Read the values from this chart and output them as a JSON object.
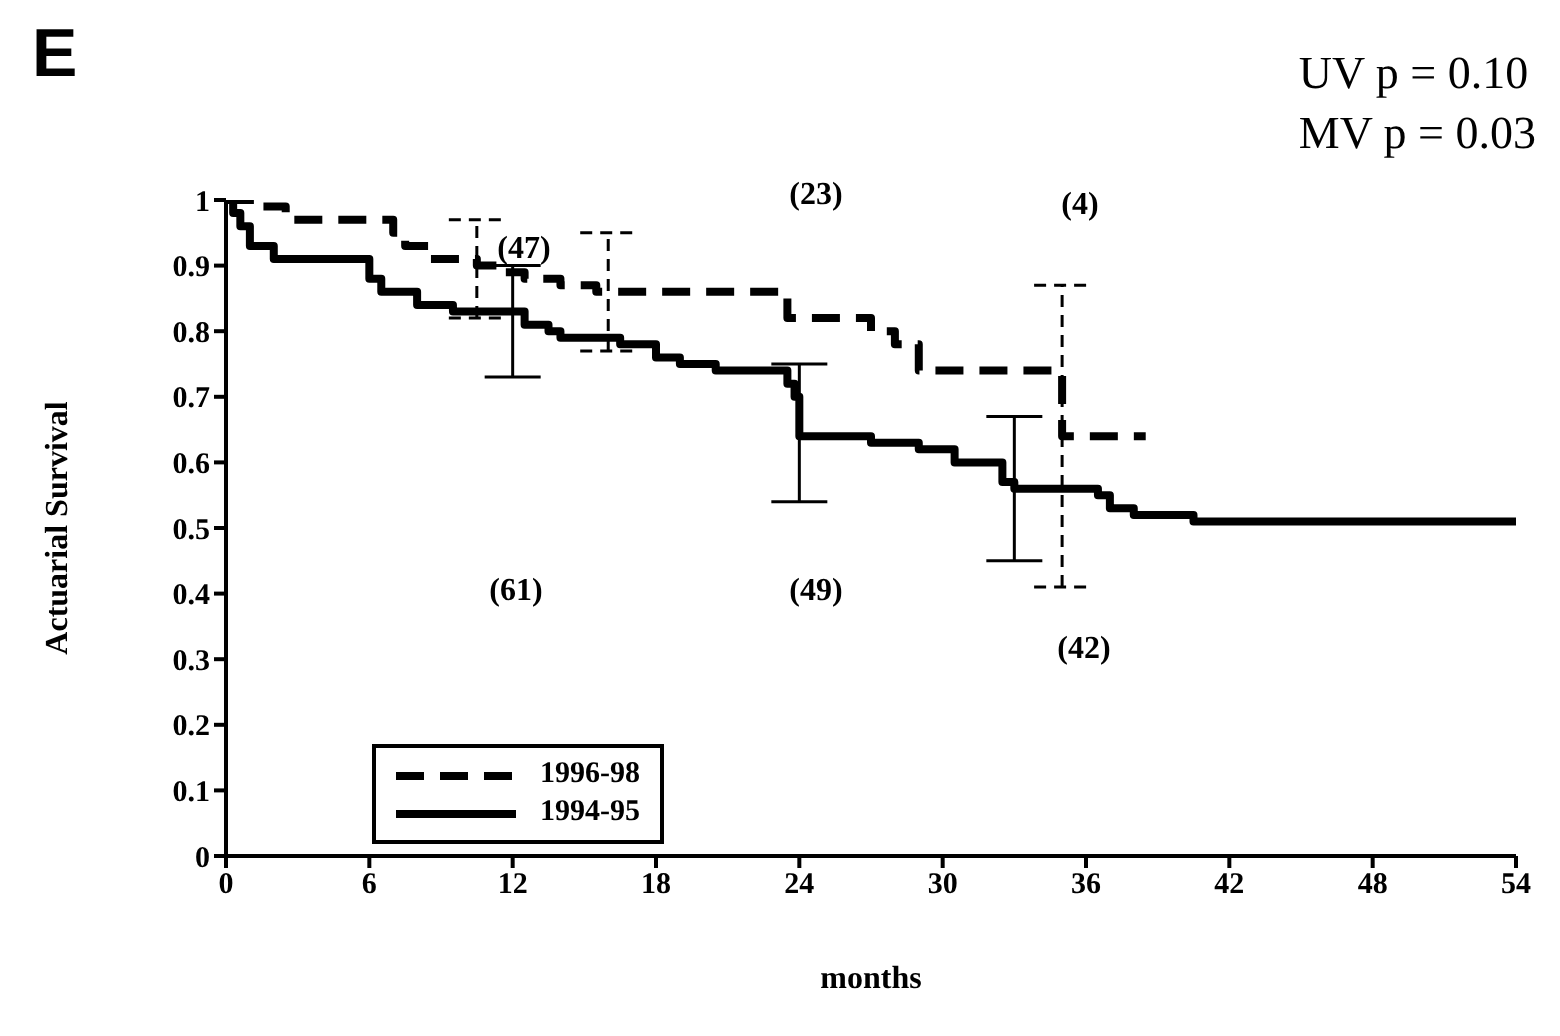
{
  "chart_data": {
    "type": "step",
    "title": "E",
    "xlabel": "months",
    "ylabel": "Actuarial Survival",
    "xlim": [
      0,
      54
    ],
    "xticks": [
      0,
      6,
      12,
      18,
      24,
      30,
      36,
      42,
      48,
      54
    ],
    "ylim": [
      0,
      1
    ],
    "yticks": [
      0,
      0.1,
      0.2,
      0.3,
      0.4,
      0.5,
      0.6,
      0.7,
      0.8,
      0.9,
      1
    ],
    "legend": "bottom left",
    "marker": "none",
    "grid": false,
    "annotations": [
      "UV p = 0.10",
      "MV p = 0.03",
      "(47)",
      "(61)",
      "(23)",
      "(49)",
      "(4)",
      "(42)"
    ],
    "series": [
      {
        "name": "1996-98",
        "color": "#000000",
        "line_style": "dashed",
        "x": [
          0,
          1,
          2.5,
          7,
          7.5,
          8.5,
          10.5,
          11.5,
          12.5,
          14,
          15.5,
          16,
          23.5,
          27,
          28,
          29,
          35,
          38.5
        ],
        "values": [
          1,
          0.99,
          0.97,
          0.95,
          0.93,
          0.91,
          0.9,
          0.89,
          0.88,
          0.87,
          0.86,
          0.86,
          0.82,
          0.8,
          0.78,
          0.74,
          0.64,
          0.64
        ],
        "errors": [
          null,
          null,
          null,
          null,
          null,
          null,
          [
            0.82,
            0.97
          ],
          null,
          null,
          null,
          null,
          [
            0.77,
            0.95
          ],
          null,
          null,
          null,
          null,
          [
            0.41,
            0.87
          ],
          null
        ]
      },
      {
        "name": "1994-95",
        "color": "#000000",
        "line_style": "solid",
        "x": [
          0,
          0.3,
          0.6,
          1,
          2,
          6,
          6.5,
          8,
          9.5,
          12,
          12.5,
          13.5,
          14,
          16.5,
          18,
          19,
          20.5,
          23.5,
          23.8,
          24,
          27,
          29,
          30.5,
          32.5,
          33,
          36.5,
          37,
          38,
          40.5,
          54
        ],
        "values": [
          1,
          0.98,
          0.96,
          0.93,
          0.91,
          0.88,
          0.86,
          0.84,
          0.83,
          0.83,
          0.81,
          0.8,
          0.79,
          0.78,
          0.76,
          0.75,
          0.74,
          0.72,
          0.7,
          0.64,
          0.63,
          0.62,
          0.6,
          0.57,
          0.56,
          0.55,
          0.53,
          0.52,
          0.51,
          0.51
        ],
        "errors": [
          null,
          null,
          null,
          null,
          null,
          null,
          null,
          null,
          null,
          [
            0.73,
            0.9
          ],
          null,
          null,
          null,
          null,
          null,
          null,
          null,
          null,
          null,
          [
            0.54,
            0.75
          ],
          null,
          null,
          null,
          null,
          [
            0.45,
            0.67
          ],
          null,
          null,
          null,
          null,
          null
        ]
      }
    ]
  }
}
